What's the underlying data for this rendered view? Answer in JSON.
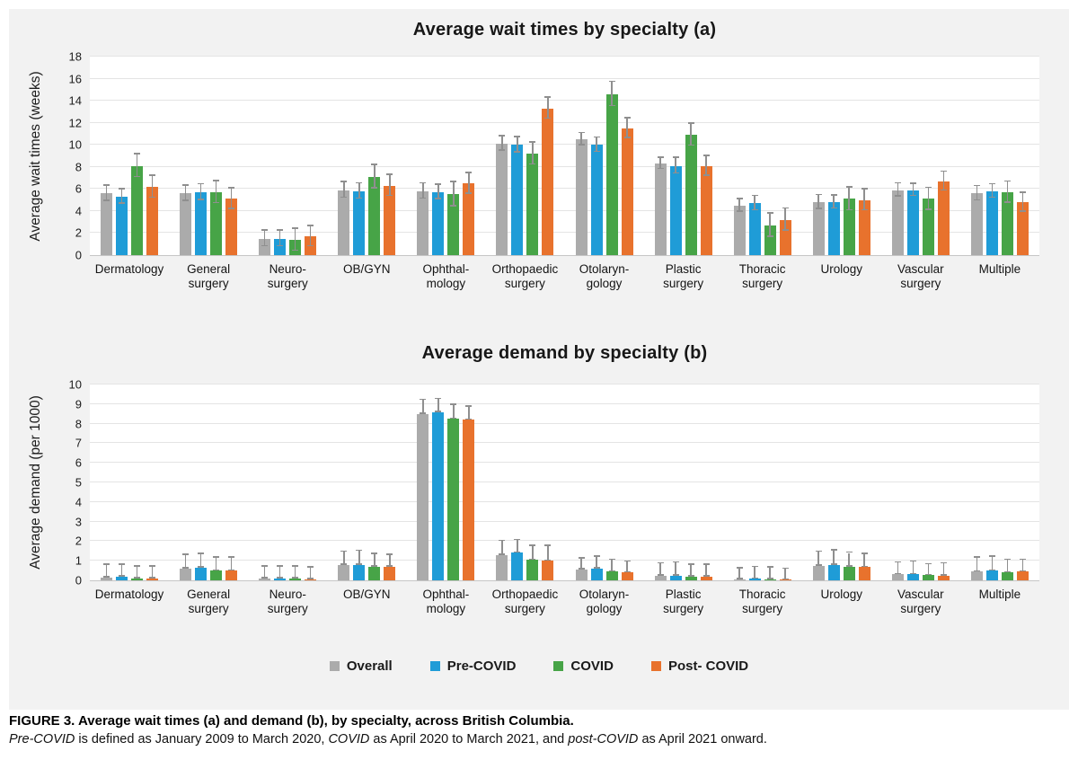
{
  "colors": {
    "overall": "#ababab",
    "pre": "#1f9cd7",
    "covid": "#47a447",
    "post": "#e8722d",
    "error": "#8f8f8f",
    "grid": "#e4e4e4",
    "panel_bg": "#f2f2f2"
  },
  "legend": [
    {
      "label": "Overall",
      "color_key": "overall"
    },
    {
      "label": "Pre-COVID",
      "color_key": "pre"
    },
    {
      "label": "COVID",
      "color_key": "covid"
    },
    {
      "label": "Post- COVID",
      "color_key": "post"
    }
  ],
  "chart_data": [
    {
      "type": "bar",
      "title": "Average wait times by specialty (a)",
      "xlabel": "",
      "ylabel": "Average wait times (weeks)",
      "ylim": [
        0,
        18
      ],
      "ytick_step": 2,
      "grid": true,
      "error_mode": "symmetric",
      "categories": [
        "Dermatology",
        "General\nsurgery",
        "Neuro-\nsurgery",
        "OB/GYN",
        "Ophthal-\nmology",
        "Orthopaedic\nsurgery",
        "Otolaryn-\ngology",
        "Plastic\nsurgery",
        "Thoracic\nsurgery",
        "Urology",
        "Vascular\nsurgery",
        "Multiple"
      ],
      "series": [
        {
          "name": "Overall",
          "color_key": "overall",
          "values": [
            5.6,
            5.6,
            1.5,
            5.9,
            5.8,
            10.1,
            10.5,
            8.3,
            4.5,
            4.8,
            5.9,
            5.6
          ],
          "errors": [
            0.7,
            0.7,
            0.7,
            0.7,
            0.7,
            0.65,
            0.55,
            0.5,
            0.55,
            0.65,
            0.6,
            0.65
          ]
        },
        {
          "name": "Pre-COVID",
          "color_key": "pre",
          "values": [
            5.3,
            5.7,
            1.5,
            5.8,
            5.7,
            10.0,
            10.0,
            8.1,
            4.7,
            4.8,
            5.9,
            5.8
          ],
          "errors": [
            0.65,
            0.7,
            0.7,
            0.7,
            0.65,
            0.7,
            0.65,
            0.7,
            0.65,
            0.6,
            0.55,
            0.6
          ]
        },
        {
          "name": "COVID",
          "color_key": "covid",
          "values": [
            8.1,
            5.7,
            1.4,
            7.1,
            5.5,
            9.2,
            14.6,
            10.9,
            2.7,
            5.1,
            5.1,
            5.7
          ],
          "errors": [
            1.05,
            1.0,
            1.0,
            1.05,
            1.1,
            1.0,
            1.1,
            1.0,
            1.05,
            1.05,
            1.0,
            0.95
          ]
        },
        {
          "name": "Post- COVID",
          "color_key": "post",
          "values": [
            6.2,
            5.1,
            1.7,
            6.3,
            6.5,
            13.3,
            11.5,
            8.1,
            3.2,
            5.0,
            6.7,
            4.8
          ],
          "errors": [
            1.0,
            0.95,
            0.9,
            0.95,
            0.95,
            0.95,
            0.9,
            0.9,
            1.0,
            0.95,
            0.85,
            0.85
          ]
        }
      ]
    },
    {
      "type": "bar",
      "title": "Average demand by specialty (b)",
      "xlabel": "",
      "ylabel": "Average demand (per 1000)",
      "ylim": [
        0,
        10
      ],
      "ytick_step": 1,
      "grid": true,
      "error_mode": "upper",
      "categories": [
        "Dermatology",
        "General\nsurgery",
        "Neuro-\nsurgery",
        "OB/GYN",
        "Ophthal-\nmology",
        "Orthopaedic\nsurgery",
        "Otolaryn-\ngology",
        "Plastic\nsurgery",
        "Thoracic\nsurgery",
        "Urology",
        "Vascular\nsurgery",
        "Multiple"
      ],
      "series": [
        {
          "name": "Overall",
          "color_key": "overall",
          "values": [
            0.15,
            0.6,
            0.1,
            0.8,
            8.5,
            1.3,
            0.55,
            0.25,
            0.05,
            0.75,
            0.3,
            0.45
          ],
          "errors": [
            0.65,
            0.7,
            0.6,
            0.65,
            0.7,
            0.7,
            0.55,
            0.6,
            0.55,
            0.7,
            0.6,
            0.7
          ]
        },
        {
          "name": "Pre-COVID",
          "color_key": "pre",
          "values": [
            0.2,
            0.65,
            0.1,
            0.8,
            8.6,
            1.4,
            0.6,
            0.25,
            0.08,
            0.78,
            0.3,
            0.5
          ],
          "errors": [
            0.6,
            0.7,
            0.6,
            0.7,
            0.65,
            0.65,
            0.6,
            0.65,
            0.6,
            0.75,
            0.65,
            0.7
          ]
        },
        {
          "name": "COVID",
          "color_key": "covid",
          "values": [
            0.1,
            0.5,
            0.1,
            0.7,
            8.25,
            1.05,
            0.45,
            0.2,
            0.05,
            0.7,
            0.27,
            0.4
          ],
          "errors": [
            0.6,
            0.65,
            0.6,
            0.65,
            0.7,
            0.7,
            0.6,
            0.6,
            0.6,
            0.7,
            0.55,
            0.65
          ]
        },
        {
          "name": "Post- COVID",
          "color_key": "post",
          "values": [
            0.1,
            0.5,
            0.05,
            0.7,
            8.2,
            1.0,
            0.4,
            0.2,
            0.03,
            0.68,
            0.25,
            0.45
          ],
          "errors": [
            0.6,
            0.65,
            0.6,
            0.6,
            0.65,
            0.75,
            0.55,
            0.6,
            0.55,
            0.65,
            0.6,
            0.6
          ]
        }
      ]
    }
  ],
  "caption": {
    "label": "FIGURE 3.",
    "title": "Average wait times (a) and demand (b), by specialty, across British Columbia.",
    "note_parts": [
      {
        "text": "Pre-COVID",
        "italic": true
      },
      {
        "text": " is defined as January 2009 to March 2020, ",
        "italic": false
      },
      {
        "text": "COVID",
        "italic": true
      },
      {
        "text": " as April 2020 to March 2021, and ",
        "italic": false
      },
      {
        "text": "post-COVID",
        "italic": true
      },
      {
        "text": " as April 2021 onward.",
        "italic": false
      }
    ]
  }
}
